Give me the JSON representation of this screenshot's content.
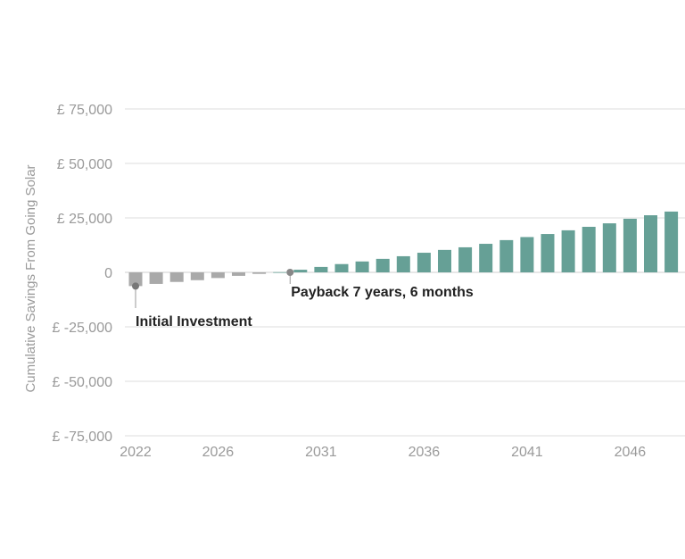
{
  "chart_data": {
    "type": "bar",
    "title": "",
    "xlabel": "",
    "ylabel": "Cumulative Savings From Going Solar",
    "ylim": [
      -75000,
      75000
    ],
    "y_ticks": [
      75000,
      50000,
      25000,
      0,
      -25000,
      -50000,
      -75000
    ],
    "y_tick_labels": [
      "£ 75,000",
      "£ 50,000",
      "£ 25,000",
      "0",
      "£ -25,000",
      "£ -50,000",
      "£ -75,000"
    ],
    "x_tick_labels": [
      "2022",
      "2026",
      "2031",
      "2036",
      "2041",
      "2046"
    ],
    "grid": true,
    "categories": [
      2022,
      2023,
      2024,
      2025,
      2026,
      2027,
      2028,
      2029,
      2030,
      2031,
      2032,
      2033,
      2034,
      2035,
      2036,
      2037,
      2038,
      2039,
      2040,
      2041,
      2042,
      2043,
      2044,
      2045,
      2046,
      2047,
      2048
    ],
    "values": [
      -6300,
      -5300,
      -4400,
      -3600,
      -2600,
      -1600,
      -700,
      100,
      1200,
      2500,
      3800,
      5000,
      6200,
      7400,
      9000,
      10300,
      11500,
      13100,
      14800,
      16200,
      17600,
      19300,
      20900,
      22500,
      24600,
      26200,
      27900
    ],
    "colors": {
      "negative": "#a9a9a9",
      "positive": "#66a096"
    },
    "annotations": [
      {
        "label": "Initial Investment",
        "x": 2022,
        "y": -6300
      },
      {
        "label": "Payback 7 years, 6 months",
        "x": 2029.5,
        "y": 0
      }
    ]
  }
}
